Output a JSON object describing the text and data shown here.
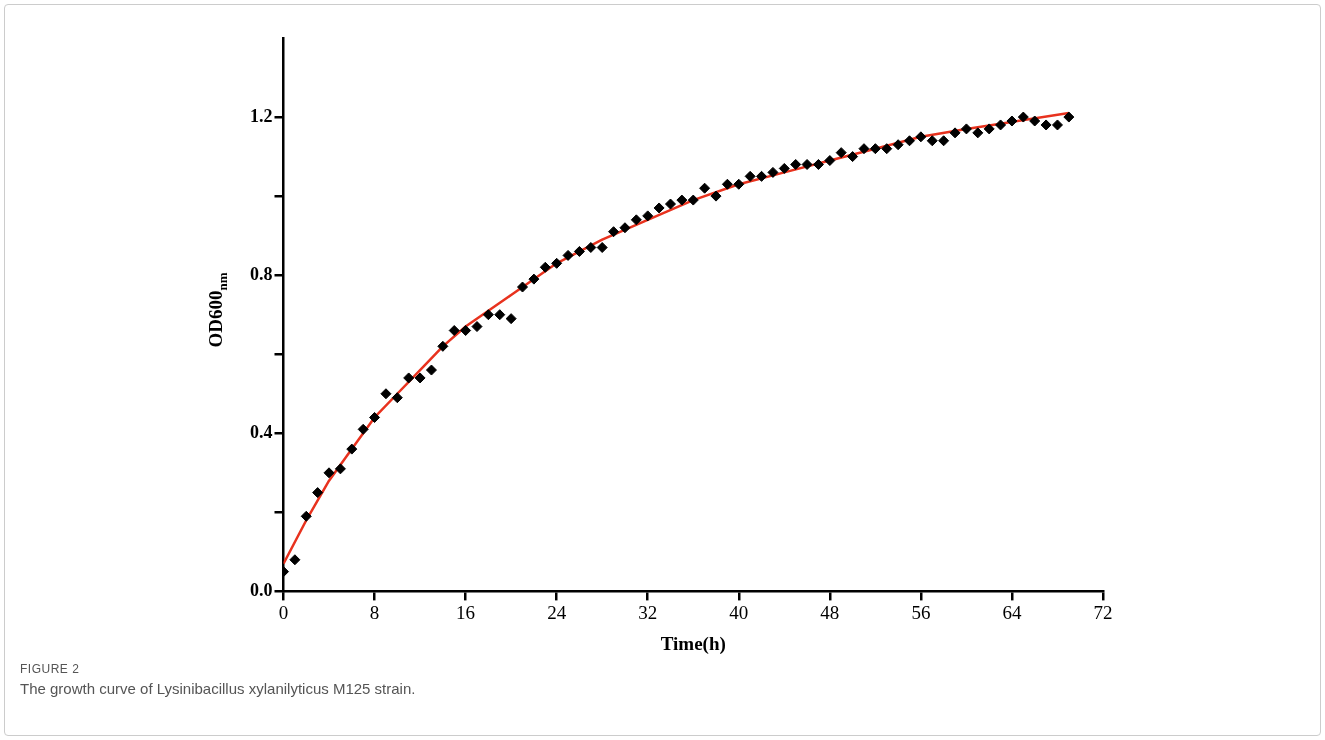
{
  "chart_data": {
    "type": "scatter",
    "xlabel": "Time(h)",
    "ylabel": "OD600$_{nm}$",
    "annotations": [
      "FIGURE 2",
      "The growth curve of Lysinibacillus xylanilyticus M125 strain."
    ],
    "xlim": [
      0,
      72
    ],
    "xticks": [
      0,
      8,
      16,
      24,
      32,
      40,
      48,
      56,
      64,
      72
    ],
    "ylim": [
      0,
      1.4
    ],
    "yticks": [
      {
        "value": 0,
        "label": "0.0"
      },
      {
        "value": 0.2,
        "label": null
      },
      {
        "value": 0.4,
        "label": "0.4"
      },
      {
        "value": 0.6,
        "label": null
      },
      {
        "value": 0.8,
        "label": "0.8"
      },
      {
        "value": 1.0,
        "label": null
      },
      {
        "value": 1.2,
        "label": "1.2"
      }
    ],
    "grid": false,
    "legend": false,
    "series": [
      {
        "type": "scatter",
        "color": "#000000",
        "marker": "diamond",
        "x": [
          0,
          1,
          2,
          3,
          4,
          5,
          6,
          7,
          8,
          9,
          10,
          11,
          12,
          13,
          14,
          15,
          16,
          17,
          18,
          19,
          20,
          21,
          22,
          23,
          24,
          25,
          26,
          27,
          28,
          29,
          30,
          31,
          32,
          33,
          34,
          35,
          36,
          37,
          38,
          39,
          40,
          41,
          42,
          43,
          44,
          45,
          46,
          47,
          48,
          49,
          50,
          51,
          52,
          53,
          54,
          55,
          56,
          57,
          58,
          59,
          60,
          61,
          62,
          63,
          64,
          65,
          66,
          67,
          68,
          69
        ],
        "values": [
          0.05,
          0.08,
          0.19,
          0.25,
          0.3,
          0.31,
          0.36,
          0.41,
          0.44,
          0.5,
          0.49,
          0.54,
          0.54,
          0.56,
          0.62,
          0.66,
          0.66,
          0.67,
          0.7,
          0.7,
          0.69,
          0.77,
          0.79,
          0.82,
          0.83,
          0.85,
          0.86,
          0.87,
          0.87,
          0.91,
          0.92,
          0.94,
          0.95,
          0.97,
          0.98,
          0.99,
          0.99,
          1.02,
          1.0,
          1.03,
          1.03,
          1.05,
          1.05,
          1.06,
          1.07,
          1.08,
          1.08,
          1.08,
          1.09,
          1.11,
          1.1,
          1.12,
          1.12,
          1.12,
          1.13,
          1.14,
          1.15,
          1.14,
          1.14,
          1.16,
          1.17,
          1.16,
          1.17,
          1.18,
          1.19,
          1.2,
          1.19,
          1.18,
          1.18,
          1.2
        ]
      },
      {
        "type": "line",
        "color": "#e8321e",
        "marker": "none",
        "x": [
          0,
          2,
          4,
          6,
          8,
          10,
          12,
          14,
          16,
          20,
          24,
          28,
          32,
          36,
          40,
          44,
          48,
          52,
          56,
          60,
          69
        ],
        "values": [
          0.07,
          0.18,
          0.28,
          0.36,
          0.44,
          0.5,
          0.56,
          0.62,
          0.67,
          0.75,
          0.83,
          0.89,
          0.94,
          0.99,
          1.03,
          1.06,
          1.09,
          1.12,
          1.15,
          1.17,
          1.21
        ]
      }
    ]
  }
}
